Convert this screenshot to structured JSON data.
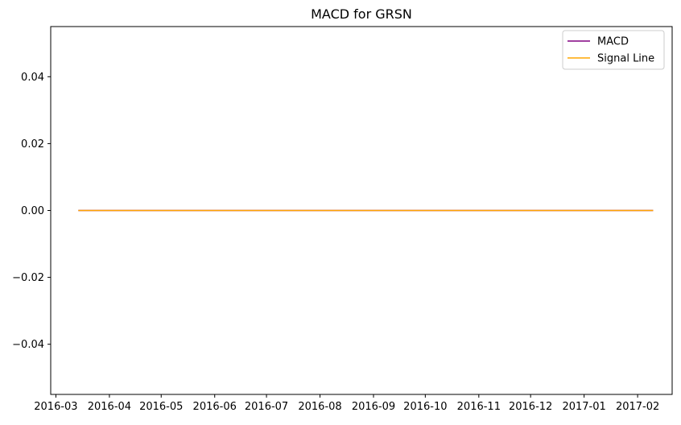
{
  "chart_data": {
    "type": "line",
    "title": "MACD for GRSN",
    "xlabel": "",
    "ylabel": "",
    "x_type": "date",
    "xlim": [
      "2016-02-27",
      "2017-02-21"
    ],
    "ylim": [
      -0.055,
      0.055
    ],
    "x_ticks": [
      "2016-03-01",
      "2016-04-01",
      "2016-05-01",
      "2016-06-01",
      "2016-07-01",
      "2016-08-01",
      "2016-09-01",
      "2016-10-01",
      "2016-11-01",
      "2016-12-01",
      "2017-01-01",
      "2017-02-01"
    ],
    "x_tick_labels": [
      "2016-03",
      "2016-04",
      "2016-05",
      "2016-06",
      "2016-07",
      "2016-08",
      "2016-09",
      "2016-10",
      "2016-11",
      "2016-12",
      "2017-01",
      "2017-02"
    ],
    "y_ticks": [
      -0.04,
      -0.02,
      0.0,
      0.02,
      0.04
    ],
    "y_tick_labels": [
      "−0.04",
      "−0.02",
      "0.00",
      "0.02",
      "0.04"
    ],
    "grid": false,
    "legend": {
      "position": "top-right"
    },
    "series": [
      {
        "name": "MACD",
        "color": "#800080",
        "x": [
          "2016-03-14",
          "2017-02-10"
        ],
        "y": [
          0.0,
          0.0
        ]
      },
      {
        "name": "Signal Line",
        "color": "#ffa500",
        "x": [
          "2016-03-14",
          "2017-02-10"
        ],
        "y": [
          0.0,
          0.0
        ]
      }
    ]
  }
}
